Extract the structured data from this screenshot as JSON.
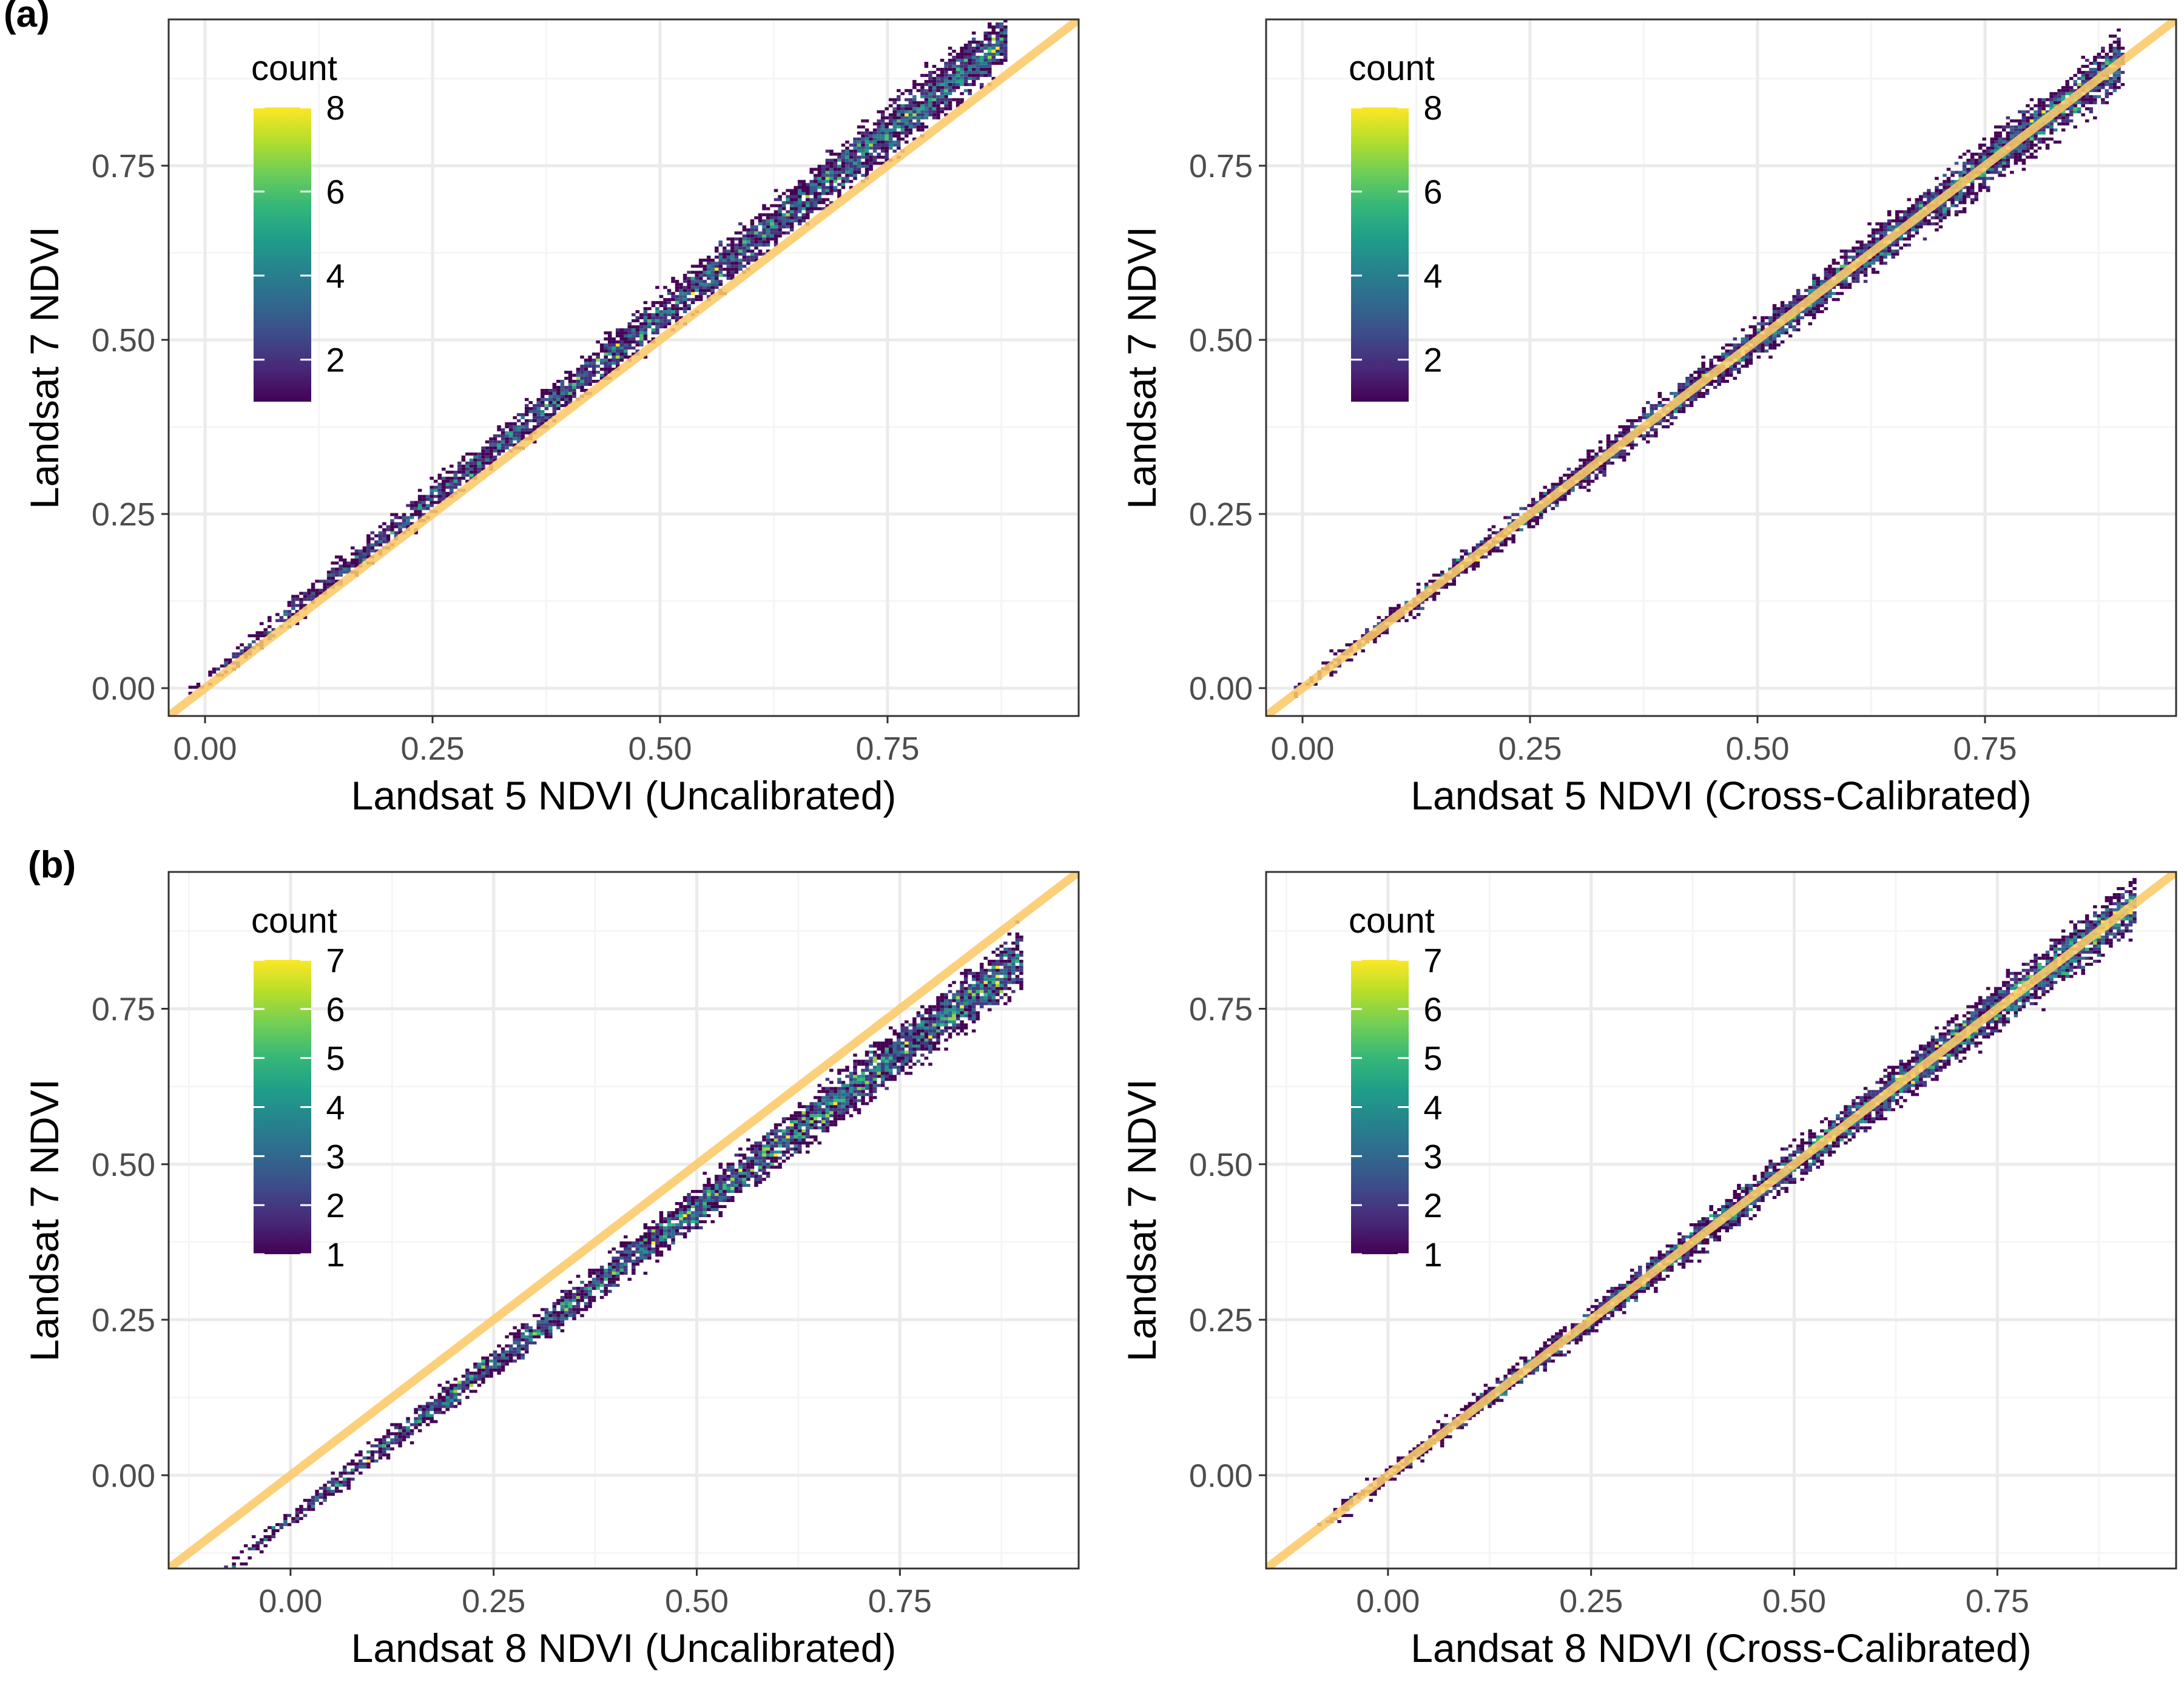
{
  "row_labels": [
    "(a)",
    "(b)"
  ],
  "colors": {
    "identity_line": "#fcc969",
    "panel_border": "#333333",
    "grid_major": "#ebebeb",
    "grid_minor": "#f5f5f5",
    "axis_text": "#4d4d4d",
    "viridis": [
      "#440154",
      "#482878",
      "#3e4a89",
      "#31688e",
      "#26828e",
      "#1f9e89",
      "#35b779",
      "#6ece58",
      "#b5de2b",
      "#fde725"
    ]
  },
  "chart_data": [
    {
      "type": "heatmap",
      "subtype": "2d-bin-count",
      "row": "(a)",
      "xlabel": "Landsat 5 NDVI (Uncalibrated)",
      "ylabel": "Landsat 7 NDVI",
      "xlim": [
        -0.04,
        0.96
      ],
      "ylim": [
        -0.04,
        0.96
      ],
      "x_ticks": [
        0.0,
        0.25,
        0.5,
        0.75
      ],
      "y_ticks": [
        0.0,
        0.25,
        0.5,
        0.75
      ],
      "x_tick_labels": [
        "0.00",
        "0.25",
        "0.50",
        "0.75"
      ],
      "y_tick_labels": [
        "0.00",
        "0.25",
        "0.50",
        "0.75"
      ],
      "grid": true,
      "reference_line": {
        "slope": 1,
        "intercept": 0
      },
      "legend": {
        "title": "count",
        "ticks": [
          2,
          4,
          6,
          8
        ],
        "range": [
          1,
          8
        ],
        "position": "top-left"
      },
      "point_cloud": {
        "relation": "y ≈ 1.05x + 0.01",
        "x_range": [
          -0.02,
          0.88
        ],
        "spread": 0.028
      },
      "peak_region": {
        "x": 0.72,
        "y": 0.76
      }
    },
    {
      "type": "heatmap",
      "subtype": "2d-bin-count",
      "row": "(a)",
      "xlabel": "Landsat 5 NDVI (Cross-Calibrated)",
      "ylabel": "Landsat 7 NDVI",
      "xlim": [
        -0.04,
        0.96
      ],
      "ylim": [
        -0.04,
        0.96
      ],
      "x_ticks": [
        0.0,
        0.25,
        0.5,
        0.75
      ],
      "y_ticks": [
        0.0,
        0.25,
        0.5,
        0.75
      ],
      "x_tick_labels": [
        "0.00",
        "0.25",
        "0.50",
        "0.75"
      ],
      "y_tick_labels": [
        "0.00",
        "0.25",
        "0.50",
        "0.75"
      ],
      "grid": true,
      "reference_line": {
        "slope": 1,
        "intercept": 0
      },
      "legend": {
        "title": "count",
        "ticks": [
          2,
          4,
          6,
          8
        ],
        "range": [
          1,
          8
        ],
        "position": "top-left"
      },
      "point_cloud": {
        "relation": "y ≈ x",
        "x_range": [
          -0.02,
          0.9
        ],
        "spread": 0.026
      },
      "peak_region": {
        "x": 0.76,
        "y": 0.76
      }
    },
    {
      "type": "heatmap",
      "subtype": "2d-bin-count",
      "row": "(b)",
      "xlabel": "Landsat 8 NDVI (Uncalibrated)",
      "ylabel": "Landsat 7 NDVI",
      "xlim": [
        -0.15,
        0.97
      ],
      "ylim": [
        -0.15,
        0.97
      ],
      "x_ticks": [
        0.0,
        0.25,
        0.5,
        0.75
      ],
      "y_ticks": [
        0.0,
        0.25,
        0.5,
        0.75
      ],
      "x_tick_labels": [
        "0.00",
        "0.25",
        "0.50",
        "0.75"
      ],
      "y_tick_labels": [
        "0.00",
        "0.25",
        "0.50",
        "0.75"
      ],
      "grid": true,
      "reference_line": {
        "slope": 1,
        "intercept": 0
      },
      "legend": {
        "title": "count",
        "ticks": [
          1,
          2,
          3,
          4,
          5,
          6,
          7
        ],
        "range": [
          1,
          7
        ],
        "position": "top-left"
      },
      "point_cloud": {
        "relation": "y ≈ 1.0x − 0.07",
        "x_range": [
          -0.1,
          0.9
        ],
        "spread": 0.03
      },
      "peak_region": {
        "x": 0.78,
        "y": 0.71
      }
    },
    {
      "type": "heatmap",
      "subtype": "2d-bin-count",
      "row": "(b)",
      "xlabel": "Landsat 8 NDVI (Cross-Calibrated)",
      "ylabel": "Landsat 7 NDVI",
      "xlim": [
        -0.15,
        0.97
      ],
      "ylim": [
        -0.15,
        0.97
      ],
      "x_ticks": [
        0.0,
        0.25,
        0.5,
        0.75
      ],
      "y_ticks": [
        0.0,
        0.25,
        0.5,
        0.75
      ],
      "x_tick_labels": [
        "0.00",
        "0.25",
        "0.50",
        "0.75"
      ],
      "y_tick_labels": [
        "0.00",
        "0.25",
        "0.50",
        "0.75"
      ],
      "grid": true,
      "reference_line": {
        "slope": 1,
        "intercept": 0
      },
      "legend": {
        "title": "count",
        "ticks": [
          1,
          2,
          3,
          4,
          5,
          6,
          7
        ],
        "range": [
          1,
          7
        ],
        "position": "top-left"
      },
      "point_cloud": {
        "relation": "y ≈ x",
        "x_range": [
          -0.1,
          0.92
        ],
        "spread": 0.028
      },
      "peak_region": {
        "x": 0.76,
        "y": 0.76
      }
    }
  ]
}
